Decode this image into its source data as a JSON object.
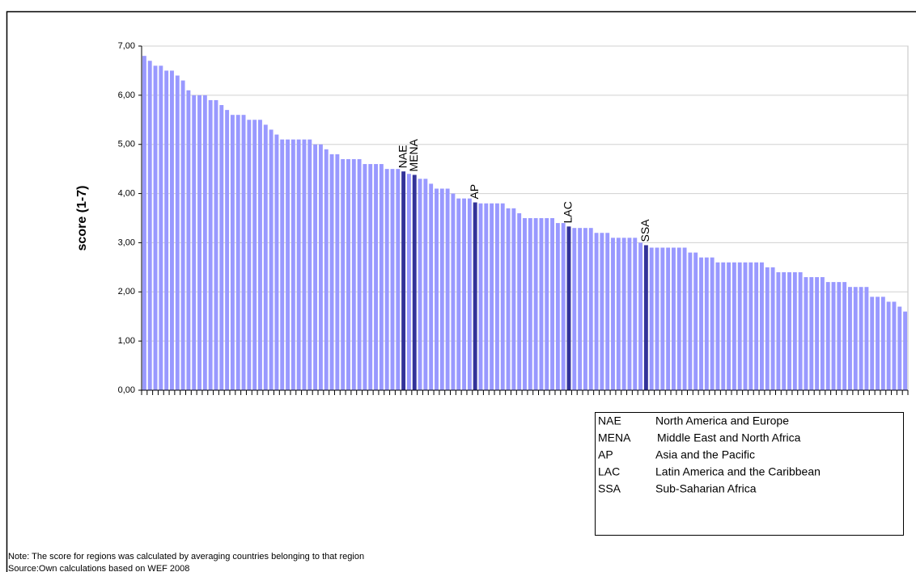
{
  "chart_data": {
    "type": "bar",
    "y_label": "score (1-7)",
    "color": "#9999ff",
    "highlight_color": "#333399",
    "grid": true,
    "ylim": [
      0,
      7
    ],
    "yticks": [
      {
        "value": 0,
        "label": "0,00"
      },
      {
        "value": 1,
        "label": "1,00"
      },
      {
        "value": 2,
        "label": "2,00"
      },
      {
        "value": 3,
        "label": "3,00"
      },
      {
        "value": 4,
        "label": "4,00"
      },
      {
        "value": 5,
        "label": "5,00"
      },
      {
        "value": 6,
        "label": "6,00"
      },
      {
        "value": 7,
        "label": "7,00"
      }
    ],
    "categories": [
      null,
      null,
      null,
      null,
      null,
      null,
      null,
      null,
      null,
      null,
      null,
      null,
      null,
      null,
      null,
      null,
      null,
      null,
      null,
      null,
      null,
      null,
      null,
      null,
      null,
      null,
      null,
      null,
      null,
      null,
      null,
      null,
      null,
      null,
      null,
      null,
      null,
      null,
      null,
      null,
      null,
      null,
      null,
      null,
      null,
      null,
      null,
      "NAE",
      null,
      "MENA",
      null,
      null,
      null,
      null,
      null,
      null,
      null,
      null,
      null,
      null,
      "AP",
      null,
      null,
      null,
      null,
      null,
      null,
      null,
      null,
      null,
      null,
      null,
      null,
      null,
      null,
      null,
      null,
      "LAC",
      null,
      null,
      null,
      null,
      null,
      null,
      null,
      null,
      null,
      null,
      null,
      null,
      null,
      "SSA",
      null,
      null,
      null,
      null,
      null,
      null,
      null,
      null,
      null,
      null,
      null,
      null,
      null,
      null,
      null,
      null,
      null,
      null,
      null,
      null,
      null,
      null,
      null,
      null,
      null,
      null,
      null,
      null,
      null,
      null,
      null,
      null,
      null,
      null,
      null,
      null,
      null,
      null,
      null,
      null,
      null,
      null,
      null,
      null,
      null,
      null,
      null
    ],
    "values": [
      6.8,
      6.7,
      6.6,
      6.6,
      6.5,
      6.5,
      6.4,
      6.3,
      6.1,
      6.0,
      6.0,
      6.0,
      5.9,
      5.9,
      5.8,
      5.7,
      5.6,
      5.6,
      5.6,
      5.5,
      5.5,
      5.5,
      5.4,
      5.3,
      5.2,
      5.1,
      5.1,
      5.1,
      5.1,
      5.1,
      5.1,
      5.0,
      5.0,
      4.9,
      4.8,
      4.8,
      4.7,
      4.7,
      4.7,
      4.7,
      4.6,
      4.6,
      4.6,
      4.6,
      4.5,
      4.5,
      4.5,
      4.45,
      4.4,
      4.38,
      4.3,
      4.3,
      4.2,
      4.1,
      4.1,
      4.1,
      4.0,
      3.9,
      3.9,
      3.9,
      3.82,
      3.8,
      3.8,
      3.8,
      3.8,
      3.8,
      3.7,
      3.7,
      3.6,
      3.5,
      3.5,
      3.5,
      3.5,
      3.5,
      3.5,
      3.4,
      3.4,
      3.33,
      3.3,
      3.3,
      3.3,
      3.3,
      3.2,
      3.2,
      3.2,
      3.1,
      3.1,
      3.1,
      3.1,
      3.1,
      3.0,
      2.95,
      2.9,
      2.9,
      2.9,
      2.9,
      2.9,
      2.9,
      2.9,
      2.8,
      2.8,
      2.7,
      2.7,
      2.7,
      2.6,
      2.6,
      2.6,
      2.6,
      2.6,
      2.6,
      2.6,
      2.6,
      2.6,
      2.5,
      2.5,
      2.4,
      2.4,
      2.4,
      2.4,
      2.4,
      2.3,
      2.3,
      2.3,
      2.3,
      2.2,
      2.2,
      2.2,
      2.2,
      2.1,
      2.1,
      2.1,
      2.1,
      1.9,
      1.9,
      1.9,
      1.8,
      1.8,
      1.7,
      1.6
    ],
    "legend_table": {
      "rows": [
        [
          "NAE",
          "North America and Europe"
        ],
        [
          "MENA",
          "Middle East and North Africa"
        ],
        [
          "AP",
          "Asia and the Pacific"
        ],
        [
          "LAC",
          "Latin America and the Caribbean"
        ],
        [
          "SSA",
          "Sub-Saharian Africa"
        ]
      ]
    },
    "notes": [
      "Note: The score for regions was calculated by averaging countries belonging to that region",
      "Source:Own calculations based on WEF 2008"
    ]
  }
}
